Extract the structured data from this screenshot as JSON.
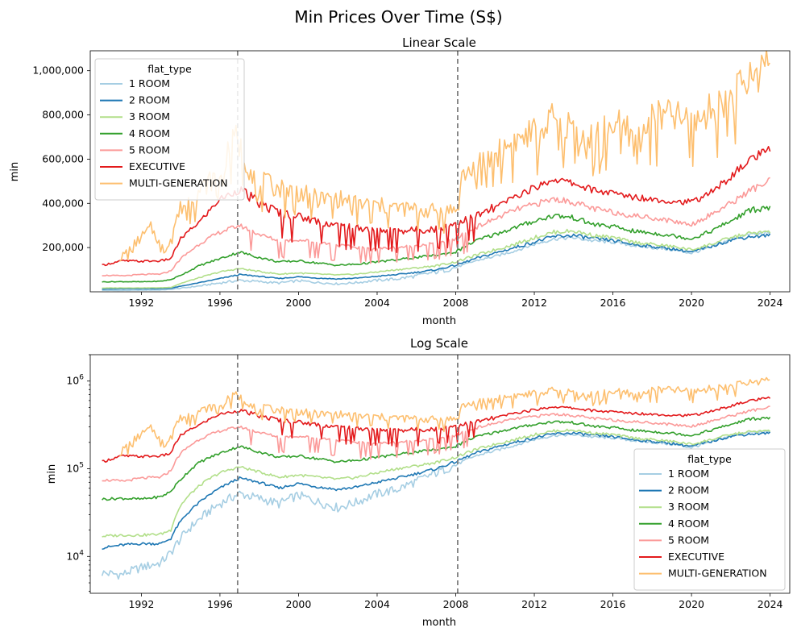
{
  "suptitle": "Min Prices Over Time (S$)",
  "colors": {
    "1 ROOM": "#a6cee3",
    "2 ROOM": "#1f78b4",
    "3 ROOM": "#b2df8a",
    "4 ROOM": "#33a02c",
    "5 ROOM": "#fb9a99",
    "EXECUTIVE": "#e31a1c",
    "MULTI-GENERATION": "#fdbf6f"
  },
  "chart_data": [
    {
      "type": "line",
      "title": "Linear Scale",
      "xlabel": "month",
      "ylabel": "min",
      "yscale": "linear",
      "xlim": [
        1989.4,
        2025.0
      ],
      "ylim": [
        0,
        1090000
      ],
      "xticks": [
        "1992",
        "1996",
        "2000",
        "2004",
        "2008",
        "2012",
        "2016",
        "2020",
        "2024"
      ],
      "yticks": [
        "200,000",
        "400,000",
        "600,000",
        "800,000",
        "1,000,000"
      ],
      "vertical_lines": [
        1996.9,
        2008.1
      ],
      "legend": {
        "title": "flat_type",
        "placement": "top-left"
      },
      "series_names": [
        "1 ROOM",
        "2 ROOM",
        "3 ROOM",
        "4 ROOM",
        "5 ROOM",
        "EXECUTIVE",
        "MULTI-GENERATION"
      ]
    },
    {
      "type": "line",
      "title": "Log Scale",
      "xlabel": "month",
      "ylabel": "min",
      "yscale": "log",
      "xlim": [
        1989.4,
        2025.0
      ],
      "ylim": [
        3800,
        2000000
      ],
      "xticks": [
        "1992",
        "1996",
        "2000",
        "2004",
        "2008",
        "2012",
        "2016",
        "2020",
        "2024"
      ],
      "yticks": [
        "10^4",
        "10^5",
        "10^6"
      ],
      "vertical_lines": [
        1996.9,
        2008.1
      ],
      "legend": {
        "title": "flat_type",
        "placement": "lower-right"
      },
      "series_names": [
        "1 ROOM",
        "2 ROOM",
        "3 ROOM",
        "4 ROOM",
        "5 ROOM",
        "EXECUTIVE",
        "MULTI-GENERATION"
      ]
    }
  ],
  "series": [
    {
      "name": "1 ROOM",
      "x": [
        1990.0,
        1991.0,
        1992.0,
        1993.0,
        1993.5,
        1994.0,
        1995.0,
        1996.0,
        1997.0,
        1998.0,
        1999.0,
        2000.0,
        2001.0,
        2002.0,
        2003.0,
        2004.0,
        2005.0,
        2006.0,
        2007.0,
        2008.0,
        2009.0,
        2010.0,
        2011.0,
        2012.0,
        2013.0,
        2014.0,
        2015.0,
        2016.0,
        2017.0,
        2018.0,
        2019.0,
        2020.0,
        2021.0,
        2022.0,
        2023.0,
        2024.0
      ],
      "y": [
        6500,
        6200,
        7500,
        8500,
        11000,
        16000,
        27000,
        40000,
        52000,
        46000,
        40000,
        50000,
        42000,
        36000,
        42000,
        52000,
        58000,
        72000,
        90000,
        110000,
        140000,
        160000,
        185000,
        215000,
        240000,
        245000,
        230000,
        225000,
        210000,
        200000,
        190000,
        175000,
        200000,
        240000,
        260000,
        265000
      ]
    },
    {
      "name": "2 ROOM",
      "x": [
        1990.0,
        1991.0,
        1992.0,
        1993.0,
        1993.5,
        1994.0,
        1995.0,
        1996.0,
        1997.0,
        1998.0,
        1999.0,
        2000.0,
        2001.0,
        2002.0,
        2003.0,
        2004.0,
        2005.0,
        2006.0,
        2007.0,
        2008.0,
        2009.0,
        2010.0,
        2011.0,
        2012.0,
        2013.0,
        2014.0,
        2015.0,
        2016.0,
        2017.0,
        2018.0,
        2019.0,
        2020.0,
        2021.0,
        2022.0,
        2023.0,
        2024.0
      ],
      "y": [
        12500,
        13500,
        14000,
        14000,
        16000,
        25000,
        42000,
        60000,
        78000,
        70000,
        60000,
        68000,
        62000,
        58000,
        62000,
        70000,
        78000,
        88000,
        100000,
        120000,
        150000,
        175000,
        200000,
        225000,
        250000,
        255000,
        240000,
        232000,
        215000,
        205000,
        195000,
        180000,
        205000,
        235000,
        250000,
        255000
      ]
    },
    {
      "name": "3 ROOM",
      "x": [
        1990.0,
        1991.0,
        1992.0,
        1993.0,
        1993.5,
        1994.0,
        1995.0,
        1996.0,
        1997.0,
        1998.0,
        1999.0,
        2000.0,
        2001.0,
        2002.0,
        2003.0,
        2004.0,
        2005.0,
        2006.0,
        2007.0,
        2008.0,
        2009.0,
        2010.0,
        2011.0,
        2012.0,
        2013.0,
        2014.0,
        2015.0,
        2016.0,
        2017.0,
        2018.0,
        2019.0,
        2020.0,
        2021.0,
        2022.0,
        2023.0,
        2024.0
      ],
      "y": [
        17000,
        17500,
        17500,
        18000,
        20000,
        38000,
        65000,
        90000,
        105000,
        92000,
        80000,
        85000,
        80000,
        76000,
        80000,
        90000,
        100000,
        108000,
        118000,
        135000,
        165000,
        190000,
        215000,
        245000,
        270000,
        275000,
        255000,
        245000,
        225000,
        215000,
        205000,
        190000,
        215000,
        245000,
        265000,
        270000
      ]
    },
    {
      "name": "4 ROOM",
      "x": [
        1990.0,
        1991.0,
        1992.0,
        1993.0,
        1993.5,
        1994.0,
        1995.0,
        1996.0,
        1997.0,
        1998.0,
        1999.0,
        2000.0,
        2001.0,
        2002.0,
        2003.0,
        2004.0,
        2005.0,
        2006.0,
        2007.0,
        2008.0,
        2009.0,
        2010.0,
        2011.0,
        2012.0,
        2013.0,
        2014.0,
        2015.0,
        2016.0,
        2017.0,
        2018.0,
        2019.0,
        2020.0,
        2021.0,
        2022.0,
        2023.0,
        2024.0
      ],
      "y": [
        45000,
        46000,
        45000,
        48000,
        55000,
        75000,
        120000,
        150000,
        180000,
        155000,
        135000,
        140000,
        130000,
        120000,
        125000,
        135000,
        145000,
        155000,
        165000,
        180000,
        230000,
        260000,
        290000,
        320000,
        345000,
        335000,
        305000,
        295000,
        275000,
        265000,
        255000,
        240000,
        275000,
        320000,
        370000,
        380000
      ]
    },
    {
      "name": "5 ROOM",
      "x": [
        1990.0,
        1991.0,
        1992.0,
        1993.0,
        1993.5,
        1994.0,
        1995.0,
        1996.0,
        1997.0,
        1998.0,
        1999.0,
        2000.0,
        2001.0,
        2002.0,
        2003.0,
        2004.0,
        2005.0,
        2006.0,
        2007.0,
        2008.0,
        2009.0,
        2010.0,
        2011.0,
        2012.0,
        2013.0,
        2014.0,
        2015.0,
        2016.0,
        2017.0,
        2018.0,
        2019.0,
        2020.0,
        2021.0,
        2022.0,
        2023.0,
        2024.0
      ],
      "y": [
        75000,
        72000,
        78000,
        80000,
        95000,
        150000,
        220000,
        270000,
        300000,
        260000,
        230000,
        235000,
        225000,
        210000,
        200000,
        195000,
        200000,
        210000,
        220000,
        240000,
        290000,
        330000,
        370000,
        395000,
        420000,
        405000,
        375000,
        360000,
        345000,
        335000,
        320000,
        305000,
        350000,
        400000,
        460000,
        500000
      ]
    },
    {
      "name": "EXECUTIVE",
      "x": [
        1990.0,
        1991.0,
        1992.0,
        1993.0,
        1993.5,
        1994.0,
        1995.0,
        1996.0,
        1997.0,
        1998.0,
        1999.0,
        2000.0,
        2001.0,
        2002.0,
        2003.0,
        2004.0,
        2005.0,
        2006.0,
        2007.0,
        2008.0,
        2009.0,
        2010.0,
        2011.0,
        2012.0,
        2013.0,
        2014.0,
        2015.0,
        2016.0,
        2017.0,
        2018.0,
        2019.0,
        2020.0,
        2021.0,
        2022.0,
        2023.0,
        2024.0
      ],
      "y": [
        120000,
        140000,
        138000,
        140000,
        150000,
        240000,
        320000,
        420000,
        460000,
        400000,
        360000,
        340000,
        320000,
        300000,
        290000,
        280000,
        275000,
        280000,
        285000,
        310000,
        340000,
        380000,
        430000,
        470000,
        510000,
        490000,
        460000,
        445000,
        430000,
        420000,
        410000,
        405000,
        450000,
        520000,
        600000,
        640000
      ]
    },
    {
      "name": "MULTI-GENERATION",
      "x": [
        1990.9,
        1992.5,
        1993.2,
        1994.0,
        1995.0,
        1996.0,
        1996.8,
        1997.5,
        1998.0,
        1999.0,
        2000.0,
        2001.0,
        2002.0,
        2003.0,
        2004.0,
        2005.0,
        2006.0,
        2007.0,
        2008.0,
        2008.3,
        2009.0,
        2010.0,
        2011.0,
        2012.0,
        2013.0,
        2014.0,
        2015.0,
        2016.0,
        2017.0,
        2018.0,
        2019.0,
        2020.0,
        2021.0,
        2022.0,
        2023.0,
        2024.0
      ],
      "y": [
        150000,
        290000,
        180000,
        380000,
        460000,
        540000,
        700000,
        560000,
        500000,
        470000,
        450000,
        420000,
        420000,
        400000,
        390000,
        380000,
        370000,
        365000,
        370000,
        520000,
        560000,
        620000,
        680000,
        720000,
        780000,
        740000,
        700000,
        760000,
        720000,
        780000,
        800000,
        760000,
        820000,
        880000,
        960000,
        1060000
      ]
    }
  ]
}
